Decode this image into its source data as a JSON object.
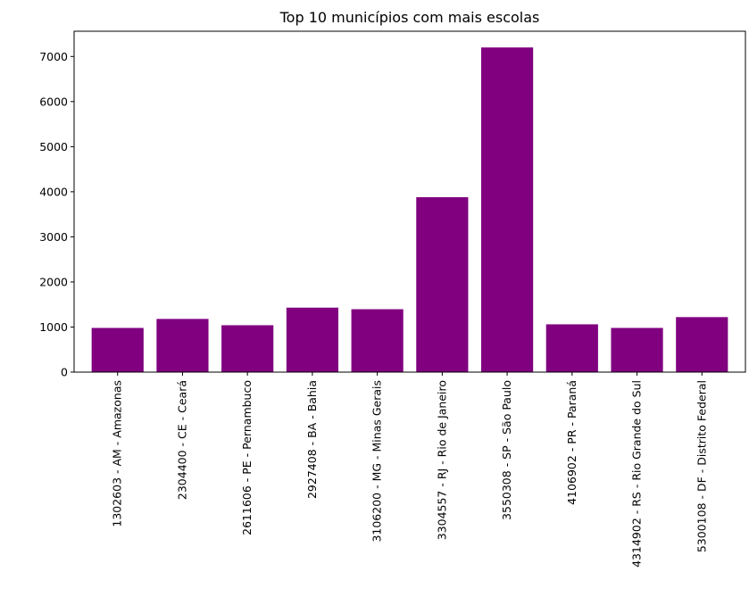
{
  "chart_data": {
    "type": "bar",
    "title": "Top 10 municípios com mais escolas",
    "xlabel": "",
    "ylabel": "",
    "categories": [
      "1302603 - AM - Amazonas",
      "2304400 - CE - Ceará",
      "2611606 - PE - Pernambuco",
      "2927408 - BA - Bahia",
      "3106200 - MG - Minas Gerais",
      "3304557 - RJ - Rio de Janeiro",
      "3550308 - SP - São Paulo",
      "4106902 - PR - Paraná",
      "4314902 - RS - Rio Grande do Sul",
      "5300108 - DF - Distrito Federal"
    ],
    "values": [
      980,
      1180,
      1040,
      1430,
      1395,
      3880,
      7200,
      1060,
      980,
      1220
    ],
    "ylim": [
      0,
      7560
    ],
    "yticks": [
      0,
      1000,
      2000,
      3000,
      4000,
      5000,
      6000,
      7000
    ],
    "bar_color": "#800080",
    "grid": false,
    "legend": "none"
  }
}
